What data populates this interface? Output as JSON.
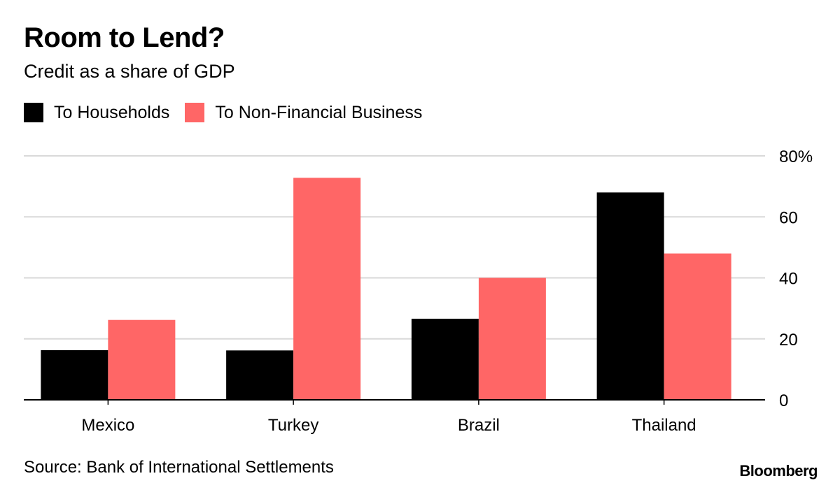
{
  "chart_data": {
    "type": "bar",
    "title": "Room to Lend?",
    "subtitle": "Credit as a share of GDP",
    "categories": [
      "Mexico",
      "Turkey",
      "Brazil",
      "Thailand"
    ],
    "series": [
      {
        "name": "To Households",
        "color": "#000000",
        "values": [
          16.3,
          16.2,
          26.6,
          68.0
        ]
      },
      {
        "name": "To Non-Financial Business",
        "color": "#ff6666",
        "values": [
          26.2,
          72.8,
          40.0,
          48.0
        ]
      }
    ],
    "ylim": [
      0,
      80
    ],
    "yticks": [
      0,
      20,
      40,
      60,
      80
    ],
    "ytick_labels": [
      "0",
      "20",
      "40",
      "60",
      "80%"
    ],
    "xlabel": "",
    "ylabel": "",
    "grid": true,
    "legend_position": "top-left",
    "source": "Source: Bank of International Settlements",
    "brand": "Bloomberg"
  }
}
